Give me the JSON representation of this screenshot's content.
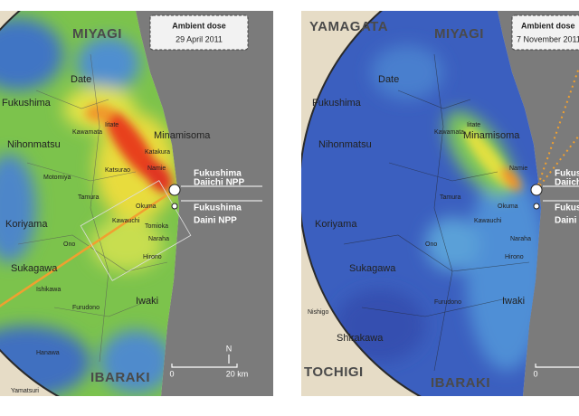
{
  "panels": [
    {
      "title": "Ambient dose",
      "date": "29 April 2011",
      "prefectures": [
        "MIYAGI",
        "IBARAKI"
      ],
      "cities": [
        "Date",
        "Fukushima",
        "Nihonmatsu",
        "Minamisoma",
        "Koriyama",
        "Sukagawa",
        "Iwaki"
      ],
      "towns": [
        "Kawamata",
        "Iitate",
        "Katsurao",
        "Namie",
        "Tamura",
        "Ono",
        "Kawauchi",
        "Naraha",
        "Hirono",
        "Furudono",
        "Ishikawa",
        "Hanawa",
        "Yamatsuri",
        "Motomiya",
        "Katakura",
        "Tomioka",
        "Okuma"
      ],
      "npp": [
        "Fukushima",
        "Daiichi NPP",
        "Fukushima",
        "Daini NPP"
      ],
      "scale": {
        "north": "N",
        "zero": "0",
        "length": "20 km"
      }
    },
    {
      "title": "Ambient dose",
      "date": "7 November 2011",
      "prefectures": [
        "YAMAGATA",
        "MIYAGI",
        "TOCHIGI",
        "IBARAKI"
      ],
      "cities": [
        "Date",
        "Fukushima",
        "Nihonmatsu",
        "Minamisoma",
        "Koriyama",
        "Sukagawa",
        "Iwaki",
        "Shirakawa"
      ],
      "towns": [
        "Nishigo",
        "Kawamata",
        "Iitate",
        "Namie",
        "Tamura",
        "Ono",
        "Kawauchi",
        "Naraha",
        "Hirono",
        "Furudono",
        "Okuma"
      ],
      "npp": [
        "Fukushima",
        "Daiichi",
        "Fukushima",
        "Daini"
      ],
      "scale": {
        "zero": "0"
      }
    }
  ]
}
